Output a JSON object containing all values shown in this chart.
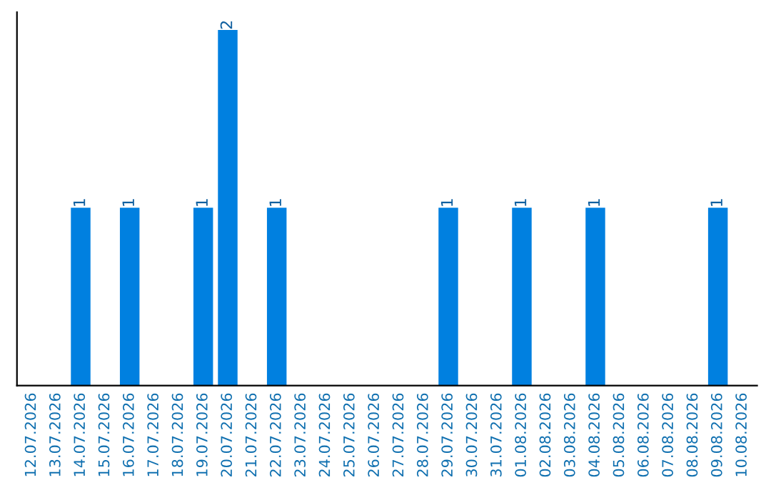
{
  "chart_data": {
    "type": "bar",
    "categories": [
      "12.07.2026",
      "13.07.2026",
      "14.07.2026",
      "15.07.2026",
      "16.07.2026",
      "17.07.2026",
      "18.07.2026",
      "19.07.2026",
      "20.07.2026",
      "21.07.2026",
      "22.07.2026",
      "23.07.2026",
      "24.07.2026",
      "25.07.2026",
      "26.07.2026",
      "27.07.2026",
      "28.07.2026",
      "29.07.2026",
      "30.07.2026",
      "31.07.2026",
      "01.08.2026",
      "02.08.2026",
      "03.08.2026",
      "04.08.2026",
      "05.08.2026",
      "06.08.2026",
      "07.08.2026",
      "08.08.2026",
      "09.08.2026",
      "10.08.2026"
    ],
    "values": [
      0,
      0,
      1,
      0,
      1,
      0,
      0,
      1,
      2,
      0,
      1,
      0,
      0,
      0,
      0,
      0,
      0,
      1,
      0,
      0,
      1,
      0,
      0,
      1,
      0,
      0,
      0,
      0,
      1,
      0
    ],
    "value_labels": [
      null,
      null,
      "1",
      null,
      "1",
      null,
      null,
      "1",
      "2",
      null,
      "1",
      null,
      null,
      null,
      null,
      null,
      null,
      "1",
      null,
      null,
      "1",
      null,
      null,
      "1",
      null,
      null,
      null,
      null,
      "1",
      null
    ],
    "color": "#0080e0",
    "ylim": [
      0,
      2.1
    ],
    "tick_labels": "x",
    "grid": false,
    "legend": false
  }
}
